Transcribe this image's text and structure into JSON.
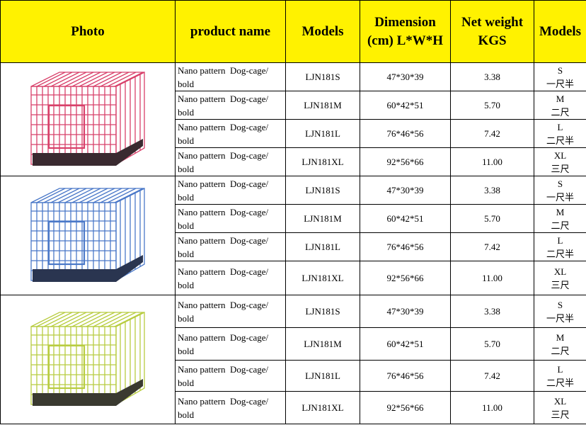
{
  "header": [
    "Photo",
    "product name",
    "Models",
    "Dimension (cm) L*W*H",
    "Net weight KGS",
    "Models"
  ],
  "rows": [
    [
      "Nano pattern  Dog-cage/ bold",
      "LJN181S",
      "47*30*39",
      "3.38",
      "S",
      "一尺半"
    ],
    [
      "Nano pattern  Dog-cage/ bold",
      "LJN181M",
      "60*42*51",
      "5.70",
      "M",
      "二尺"
    ],
    [
      "Nano pattern  Dog-cage/ bold",
      "LJN181L",
      "76*46*56",
      "7.42",
      "L",
      "二尺半"
    ],
    [
      "Nano pattern  Dog-cage/ bold",
      "LJN181XL",
      "92*56*66",
      "11.00",
      "XL",
      "三尺"
    ],
    [
      "Nano pattern  Dog-cage/ bold",
      "LJN181S",
      "47*30*39",
      "3.38",
      "S",
      "一尺半"
    ],
    [
      "Nano pattern  Dog-cage/ bold",
      "LJN181M",
      "60*42*51",
      "5.70",
      "M",
      "二尺"
    ],
    [
      "Nano pattern  Dog-cage/ bold",
      "LJN181L",
      "76*46*56",
      "7.42",
      "L",
      "二尺半"
    ],
    [
      "Nano pattern  Dog-cage/ bold",
      "LJN181XL",
      "92*56*66",
      "11.00",
      "XL",
      "三尺"
    ],
    [
      "Nano pattern  Dog-cage/ bold",
      "LJN181S",
      "47*30*39",
      "3.38",
      "S",
      "一尺半"
    ],
    [
      "Nano pattern  Dog-cage/ bold",
      "LJN181M",
      "60*42*51",
      "5.70",
      "M",
      "二尺"
    ],
    [
      "Nano pattern  Dog-cage/ bold",
      "LJN181L",
      "76*46*56",
      "7.42",
      "L",
      "二尺半"
    ],
    [
      "Nano pattern  Dog-cage/ bold",
      "LJN181XL",
      "92*56*66",
      "11.00",
      "XL",
      "三尺"
    ]
  ]
}
